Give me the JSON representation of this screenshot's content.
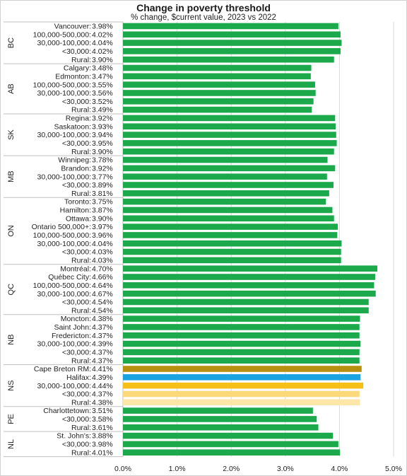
{
  "chart_data": {
    "type": "bar",
    "orientation": "horizontal",
    "title": "Change in poverty threshold",
    "subtitle": "% change, $current value,  2023 vs 2022",
    "xlim": [
      0,
      5
    ],
    "x_ticks": [
      "0.0%",
      "1.0%",
      "2.0%",
      "3.0%",
      "4.0%",
      "5.0%"
    ],
    "colors": {
      "default": "#1ba94c",
      "Cape Breton RM": "#b8900f",
      "Halifax": "#1aa3e0",
      "NS 30,000-100,000": "#f5c01a",
      "NS <30,000": "#fbd97a",
      "NS Rural": "#fce6a8"
    },
    "groups": [
      {
        "province": "BC",
        "rows": [
          {
            "label": "Vancouver:",
            "value": 3.98,
            "text": "3.98%"
          },
          {
            "label": "100,000-500,000:",
            "value": 4.02,
            "text": "4.02%"
          },
          {
            "label": "30,000-100,000:",
            "value": 4.04,
            "text": "4.04%"
          },
          {
            "label": "<30,000:",
            "value": 4.02,
            "text": "4.02%"
          },
          {
            "label": "Rural:",
            "value": 3.9,
            "text": "3.90%"
          }
        ]
      },
      {
        "province": "AB",
        "rows": [
          {
            "label": "Calgary:",
            "value": 3.48,
            "text": "3.48%"
          },
          {
            "label": "Edmonton:",
            "value": 3.47,
            "text": "3.47%"
          },
          {
            "label": "100,000-500,000:",
            "value": 3.55,
            "text": "3.55%"
          },
          {
            "label": "30,000-100,000:",
            "value": 3.56,
            "text": "3.56%"
          },
          {
            "label": "<30,000:",
            "value": 3.52,
            "text": "3.52%"
          },
          {
            "label": "Rural:",
            "value": 3.49,
            "text": "3.49%"
          }
        ]
      },
      {
        "province": "SK",
        "rows": [
          {
            "label": "Regina:",
            "value": 3.92,
            "text": "3.92%"
          },
          {
            "label": "Saskatoon:",
            "value": 3.93,
            "text": "3.93%"
          },
          {
            "label": "30,000-100,000:",
            "value": 3.94,
            "text": "3.94%"
          },
          {
            "label": "<30,000:",
            "value": 3.95,
            "text": "3.95%"
          },
          {
            "label": "Rural:",
            "value": 3.9,
            "text": "3.90%"
          }
        ]
      },
      {
        "province": "MB",
        "rows": [
          {
            "label": "Winnipeg:",
            "value": 3.78,
            "text": "3.78%"
          },
          {
            "label": "Brandon:",
            "value": 3.92,
            "text": "3.92%"
          },
          {
            "label": "30,000-100,000:",
            "value": 3.77,
            "text": "3.77%"
          },
          {
            "label": "<30,000:",
            "value": 3.89,
            "text": "3.89%"
          },
          {
            "label": "Rural:",
            "value": 3.81,
            "text": "3.81%"
          }
        ]
      },
      {
        "province": "ON",
        "rows": [
          {
            "label": "Toronto:",
            "value": 3.75,
            "text": "3.75%"
          },
          {
            "label": "Hamilton:",
            "value": 3.87,
            "text": "3.87%"
          },
          {
            "label": "Ottawa:",
            "value": 3.9,
            "text": "3.90%"
          },
          {
            "label": "Ontario 500,000+:",
            "value": 3.97,
            "text": "3.97%"
          },
          {
            "label": "100,000-500,000:",
            "value": 3.96,
            "text": "3.96%"
          },
          {
            "label": "30,000-100,000:",
            "value": 4.04,
            "text": "4.04%"
          },
          {
            "label": "<30,000:",
            "value": 4.03,
            "text": "4.03%"
          },
          {
            "label": "Rural:",
            "value": 4.03,
            "text": "4.03%"
          }
        ]
      },
      {
        "province": "QC",
        "rows": [
          {
            "label": "Montréal:",
            "value": 4.7,
            "text": "4.70%"
          },
          {
            "label": "Québec City:",
            "value": 4.66,
            "text": "4.66%"
          },
          {
            "label": "100,000-500,000:",
            "value": 4.64,
            "text": "4.64%"
          },
          {
            "label": "30,000-100,000:",
            "value": 4.67,
            "text": "4.67%"
          },
          {
            "label": "<30,000:",
            "value": 4.54,
            "text": "4.54%"
          },
          {
            "label": "Rural:",
            "value": 4.54,
            "text": "4.54%"
          }
        ]
      },
      {
        "province": "NB",
        "rows": [
          {
            "label": "Moncton:",
            "value": 4.38,
            "text": "4.38%"
          },
          {
            "label": "Saint John:",
            "value": 4.37,
            "text": "4.37%"
          },
          {
            "label": "Fredericton:",
            "value": 4.37,
            "text": "4.37%"
          },
          {
            "label": "30,000-100,000:",
            "value": 4.39,
            "text": "4.39%"
          },
          {
            "label": "<30,000:",
            "value": 4.37,
            "text": "4.37%"
          },
          {
            "label": "Rural:",
            "value": 4.37,
            "text": "4.37%"
          }
        ]
      },
      {
        "province": "NS",
        "rows": [
          {
            "label": "Cape Breton RM:",
            "value": 4.41,
            "text": "4.41%",
            "color": "#b8900f"
          },
          {
            "label": "Halifax:",
            "value": 4.39,
            "text": "4.39%",
            "color": "#1aa3e0"
          },
          {
            "label": "30,000-100,000:",
            "value": 4.44,
            "text": "4.44%",
            "color": "#f5c01a"
          },
          {
            "label": "<30,000:",
            "value": 4.37,
            "text": "4.37%",
            "color": "#fbd97a"
          },
          {
            "label": "Rural:",
            "value": 4.38,
            "text": "4.38%",
            "color": "#fce6a8"
          }
        ]
      },
      {
        "province": "PE",
        "rows": [
          {
            "label": "Charlottetown:",
            "value": 3.51,
            "text": "3.51%"
          },
          {
            "label": "<30,000:",
            "value": 3.58,
            "text": "3.58%"
          },
          {
            "label": "Rural:",
            "value": 3.61,
            "text": "3.61%"
          }
        ]
      },
      {
        "province": "NL",
        "rows": [
          {
            "label": "St. John's:",
            "value": 3.88,
            "text": "3.88%"
          },
          {
            "label": "<30,000:",
            "value": 3.98,
            "text": "3.98%"
          },
          {
            "label": "Rural:",
            "value": 4.01,
            "text": "4.01%"
          }
        ]
      }
    ],
    "grid": true,
    "legend": "none"
  }
}
